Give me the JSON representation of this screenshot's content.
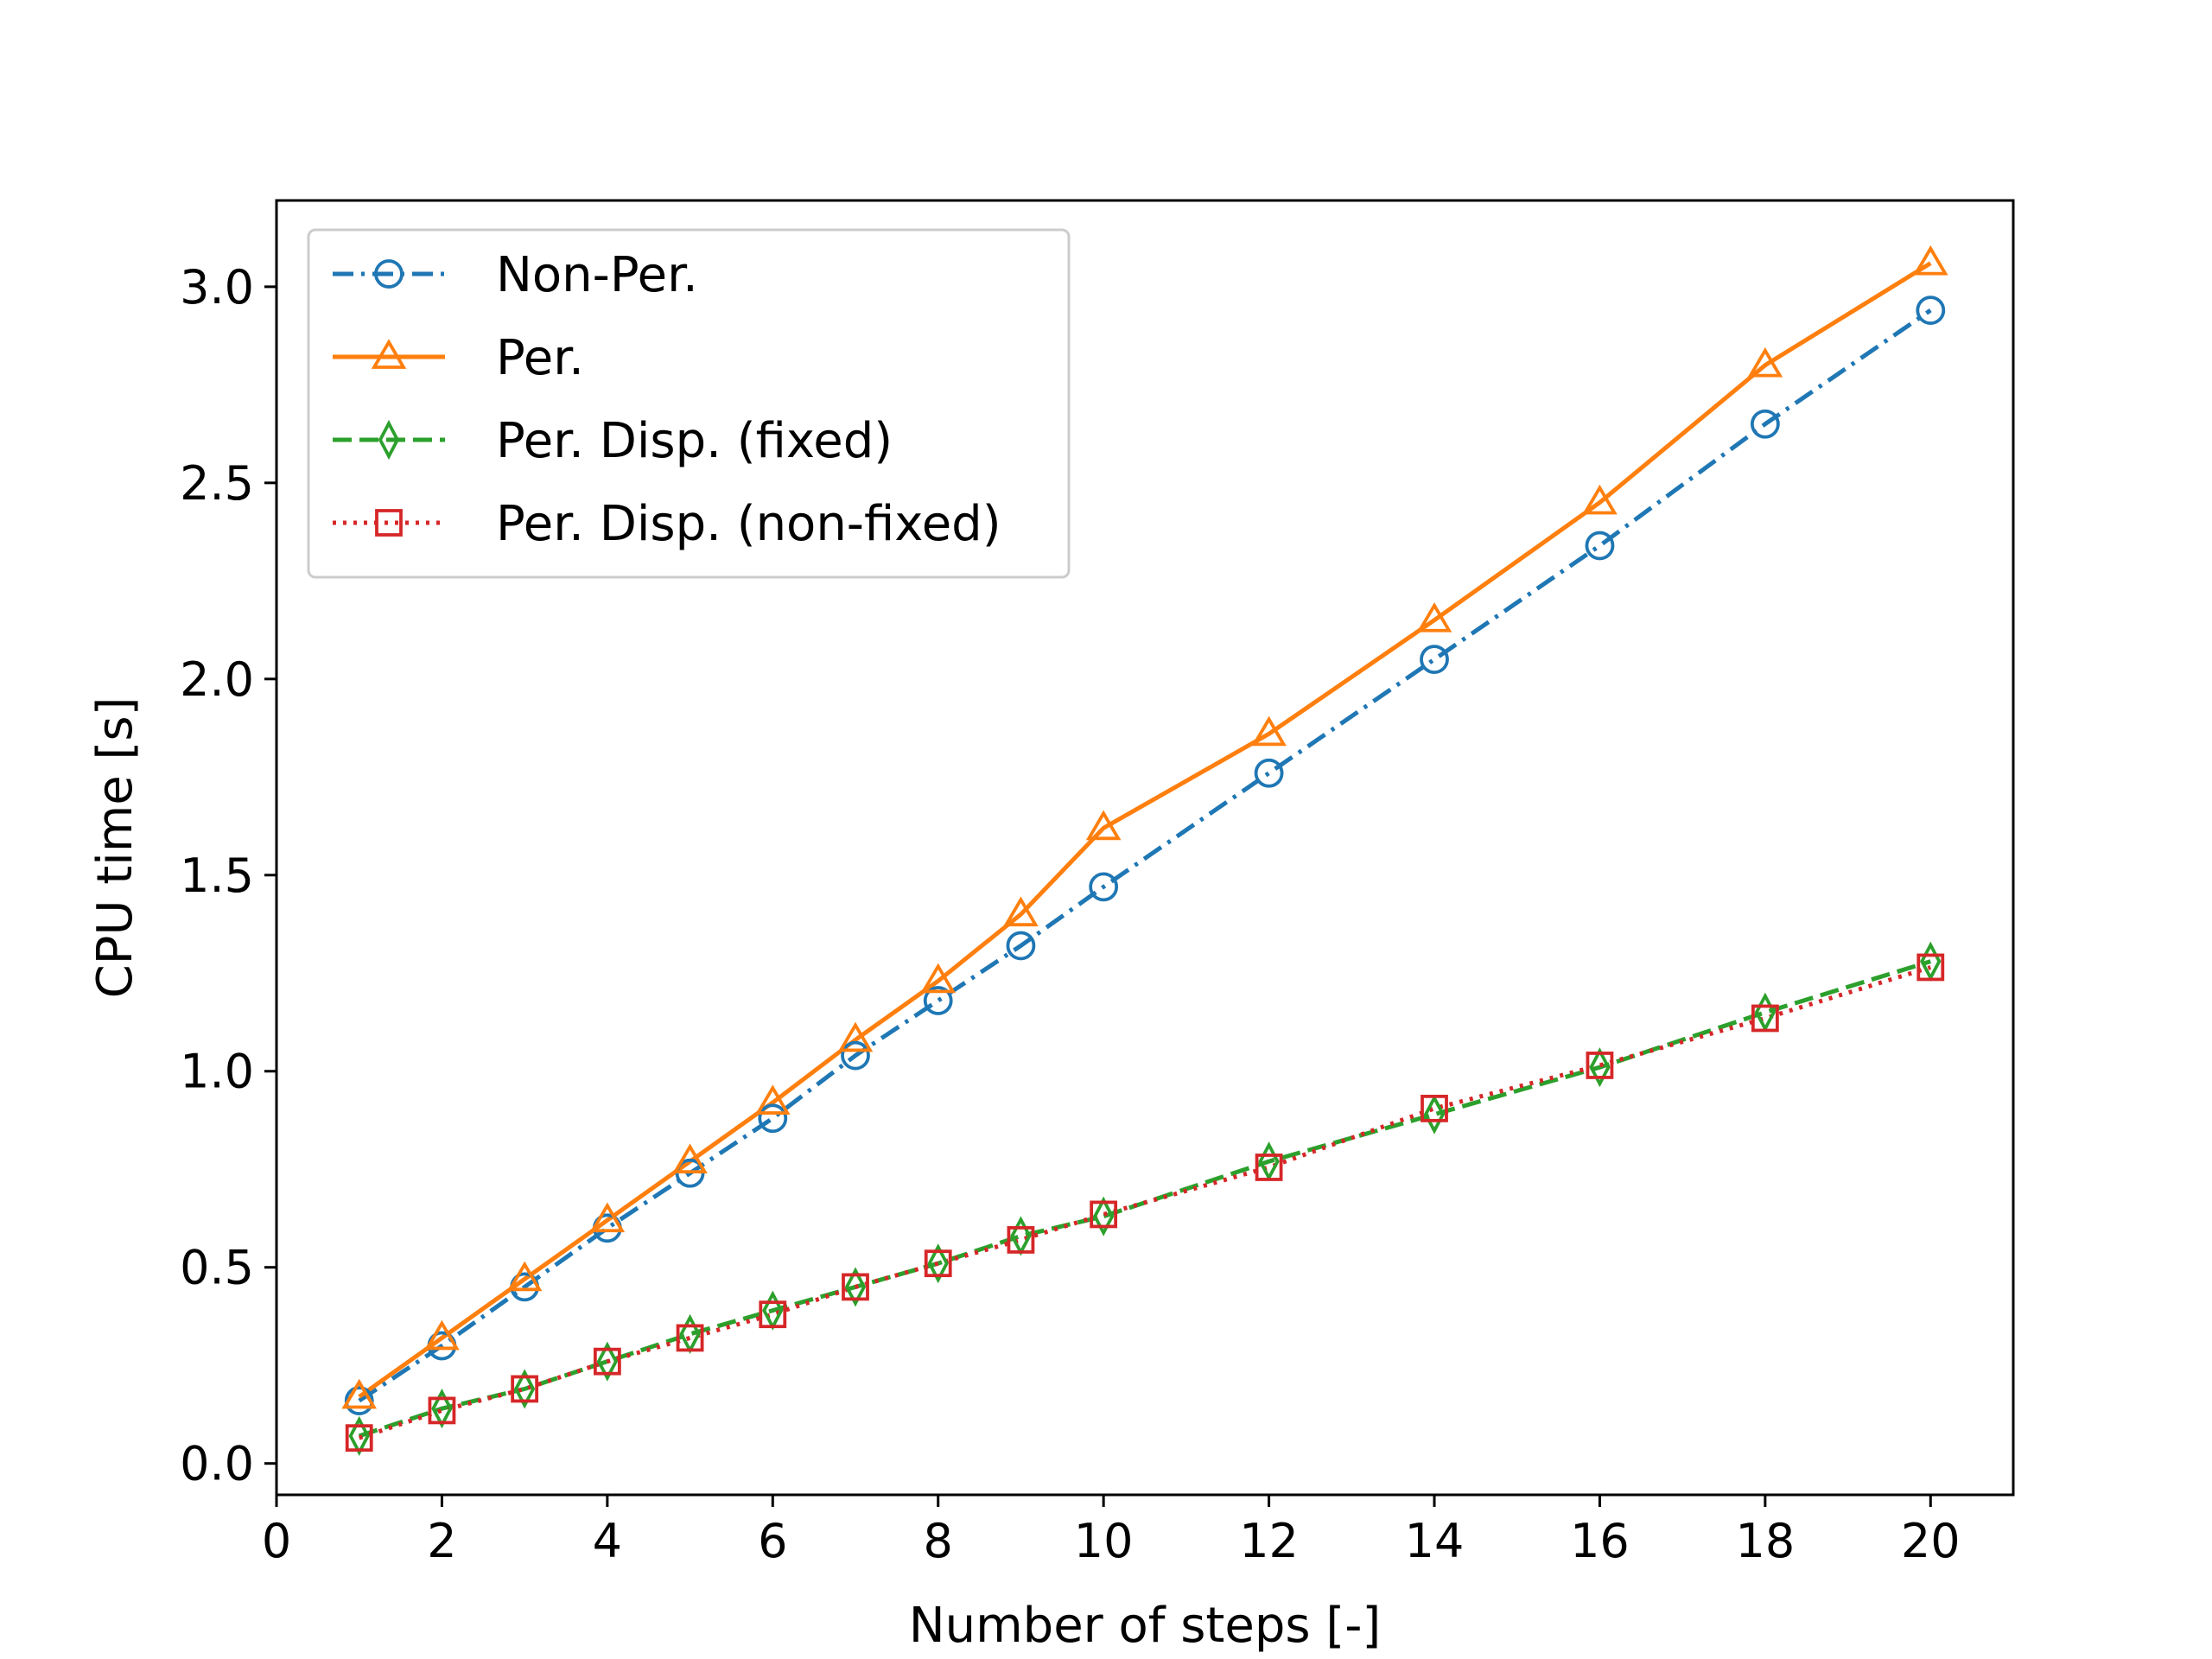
{
  "chart_data": {
    "type": "line",
    "title": "",
    "xlabel": "Number of steps [-]",
    "ylabel": "CPU time [s]",
    "xlim": [
      0,
      21
    ],
    "ylim": [
      -0.08,
      3.22
    ],
    "xticks": [
      0,
      2,
      4,
      6,
      8,
      10,
      12,
      14,
      16,
      18,
      20
    ],
    "xtick_labels": [
      "0",
      "2",
      "4",
      "6",
      "8",
      "10",
      "12",
      "14",
      "16",
      "18",
      "20"
    ],
    "yticks": [
      0.0,
      0.5,
      1.0,
      1.5,
      2.0,
      2.5,
      3.0
    ],
    "ytick_labels": [
      "0.0",
      "0.5",
      "1.0",
      "1.5",
      "2.0",
      "2.5",
      "3.0"
    ],
    "grid": false,
    "legend_position": "top-left",
    "x": [
      1,
      2,
      3,
      4,
      5,
      6,
      7,
      8,
      9,
      10,
      12,
      14,
      16,
      18,
      20
    ],
    "series": [
      {
        "name": "Non-Per.",
        "color": "#1f77b4",
        "line_style": "dashdot",
        "marker": "circle",
        "values": [
          0.16,
          0.3,
          0.45,
          0.6,
          0.74,
          0.88,
          1.04,
          1.18,
          1.32,
          1.47,
          1.76,
          2.05,
          2.34,
          2.65,
          2.94
        ]
      },
      {
        "name": "Per.",
        "color": "#ff7f0e",
        "line_style": "solid",
        "marker": "triangle",
        "values": [
          0.17,
          0.32,
          0.47,
          0.62,
          0.77,
          0.92,
          1.08,
          1.23,
          1.4,
          1.62,
          1.86,
          2.15,
          2.45,
          2.8,
          3.06
        ]
      },
      {
        "name": "Per. Disp. (fixed)",
        "color": "#2ca02c",
        "line_style": "dashed",
        "marker": "thin-diamond",
        "values": [
          0.07,
          0.14,
          0.19,
          0.26,
          0.33,
          0.39,
          0.45,
          0.51,
          0.58,
          0.63,
          0.77,
          0.89,
          1.01,
          1.15,
          1.28
        ]
      },
      {
        "name": "Per. Disp. (non-fixed)",
        "color": "#d62728",
        "line_style": "dotted",
        "marker": "square",
        "values": [
          0.065,
          0.135,
          0.19,
          0.26,
          0.32,
          0.38,
          0.45,
          0.51,
          0.57,
          0.635,
          0.755,
          0.905,
          1.015,
          1.135,
          1.265
        ]
      }
    ]
  }
}
